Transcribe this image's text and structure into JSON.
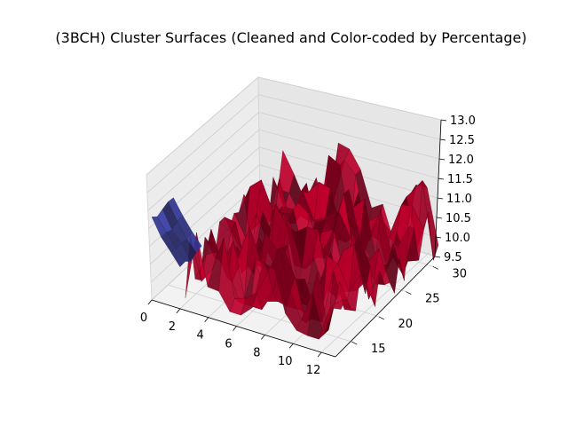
{
  "chart_data": {
    "type": "surface3d",
    "title": "(3BCH) Cluster Surfaces (Cleaned and Color-coded by Percentage)",
    "xlabel": "",
    "ylabel": "",
    "zlabel": "",
    "xlim": [
      0,
      13
    ],
    "ylim": [
      12,
      32
    ],
    "zlim": [
      9.5,
      13.0
    ],
    "x_ticks": [
      "0",
      "2",
      "4",
      "6",
      "8",
      "10",
      "12"
    ],
    "y_ticks": [
      "15",
      "20",
      "25",
      "30"
    ],
    "z_ticks": [
      "9.5",
      "10.0",
      "10.5",
      "11.0",
      "11.5",
      "12.0",
      "12.5",
      "13.0"
    ],
    "grid": true,
    "series": [
      {
        "color": "#a50026",
        "x_range": [
          2,
          13
        ],
        "y_range": [
          13,
          31
        ],
        "z_range": [
          9.7,
          13.0
        ]
      },
      {
        "color": "#313695",
        "x_range": [
          0,
          2
        ],
        "y_range": [
          12,
          16
        ],
        "z_range": [
          10.8,
          12.4
        ]
      }
    ]
  }
}
